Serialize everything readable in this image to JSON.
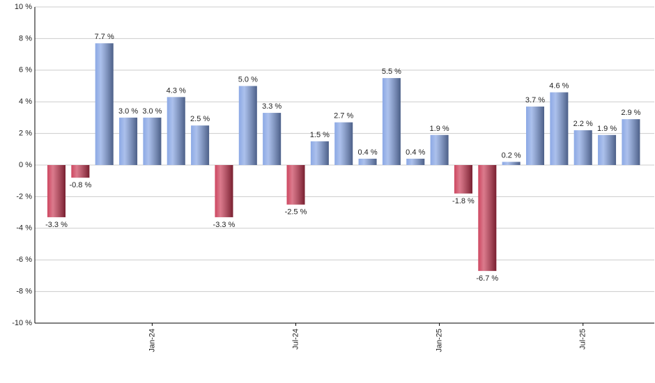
{
  "chart_data": {
    "type": "bar",
    "categories": [
      null,
      null,
      null,
      null,
      "Jan-24",
      null,
      null,
      null,
      null,
      null,
      "Jul-24",
      null,
      null,
      null,
      null,
      null,
      "Jan-25",
      null,
      null,
      null,
      null,
      null,
      "Jul-25",
      null,
      null
    ],
    "values": [
      -3.3,
      -0.8,
      7.7,
      3.0,
      3.0,
      4.3,
      2.5,
      -3.3,
      5.0,
      3.3,
      -2.5,
      1.5,
      2.7,
      0.4,
      5.5,
      0.4,
      1.9,
      -1.8,
      -6.7,
      0.2,
      3.7,
      4.6,
      2.2,
      1.9,
      2.9
    ],
    "value_labels": [
      "-3.3 %",
      "-0.8 %",
      "7.7 %",
      "3.0 %",
      "3.0 %",
      "4.3 %",
      "2.5 %",
      "-3.3 %",
      "5.0 %",
      "3.3 %",
      "-2.5 %",
      "1.5 %",
      "2.7 %",
      "0.4 %",
      "5.5 %",
      "0.4 %",
      "1.9 %",
      "-1.8 %",
      "-6.7 %",
      "0.2 %",
      "3.7 %",
      "4.6 %",
      "2.2 %",
      "1.9 %",
      "2.9 %"
    ],
    "color": "#7f9fe2",
    "negative_color": "#c8334f",
    "ylim": [
      -10,
      10
    ],
    "yticks": [
      {
        "value": -10,
        "label": "-10 %"
      },
      {
        "value": -8,
        "label": "-8 %"
      },
      {
        "value": -6,
        "label": "-6 %"
      },
      {
        "value": -4,
        "label": "-4 %"
      },
      {
        "value": -2,
        "label": "-2 %"
      },
      {
        "value": 0,
        "label": "0 %"
      },
      {
        "value": 2,
        "label": "2 %"
      },
      {
        "value": 4,
        "label": "4 %"
      },
      {
        "value": 6,
        "label": "6 %"
      },
      {
        "value": 8,
        "label": "8 %"
      },
      {
        "value": 10,
        "label": "10 %"
      }
    ],
    "grid": true
  }
}
